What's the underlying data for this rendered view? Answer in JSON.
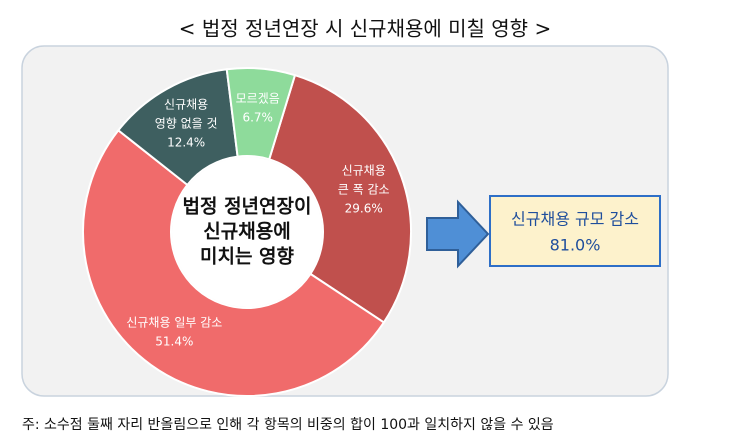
{
  "chart_data": {
    "type": "donut",
    "title": "< 법정 정년연장 시 신규채용에 미칠 영향 >",
    "center_label": [
      "법정 정년연장이",
      "신규채용에",
      "미치는 영향"
    ],
    "categories": [
      [
        "신규채용",
        "큰 폭 감소"
      ],
      [
        "신규채용 일부 감소"
      ],
      [
        "신규채용",
        "영향 없을 것"
      ],
      [
        "모르겠음"
      ]
    ],
    "values": [
      29.6,
      51.4,
      12.4,
      6.7
    ],
    "value_labels": [
      "29.6%",
      "51.4%",
      "12.4%",
      "6.7%"
    ],
    "colors": [
      "#c0504d",
      "#f06b6b",
      "#3e5f60",
      "#8edb9b"
    ],
    "callout": {
      "label": "신규채용 규모 감소",
      "value": 81.0,
      "value_label": "81.0%"
    },
    "footnote": "주: 소수점 둘째 자리 반올림으로 인해 각 항목의 비중의 합이 100과 일치하지 않을 수 있음"
  }
}
